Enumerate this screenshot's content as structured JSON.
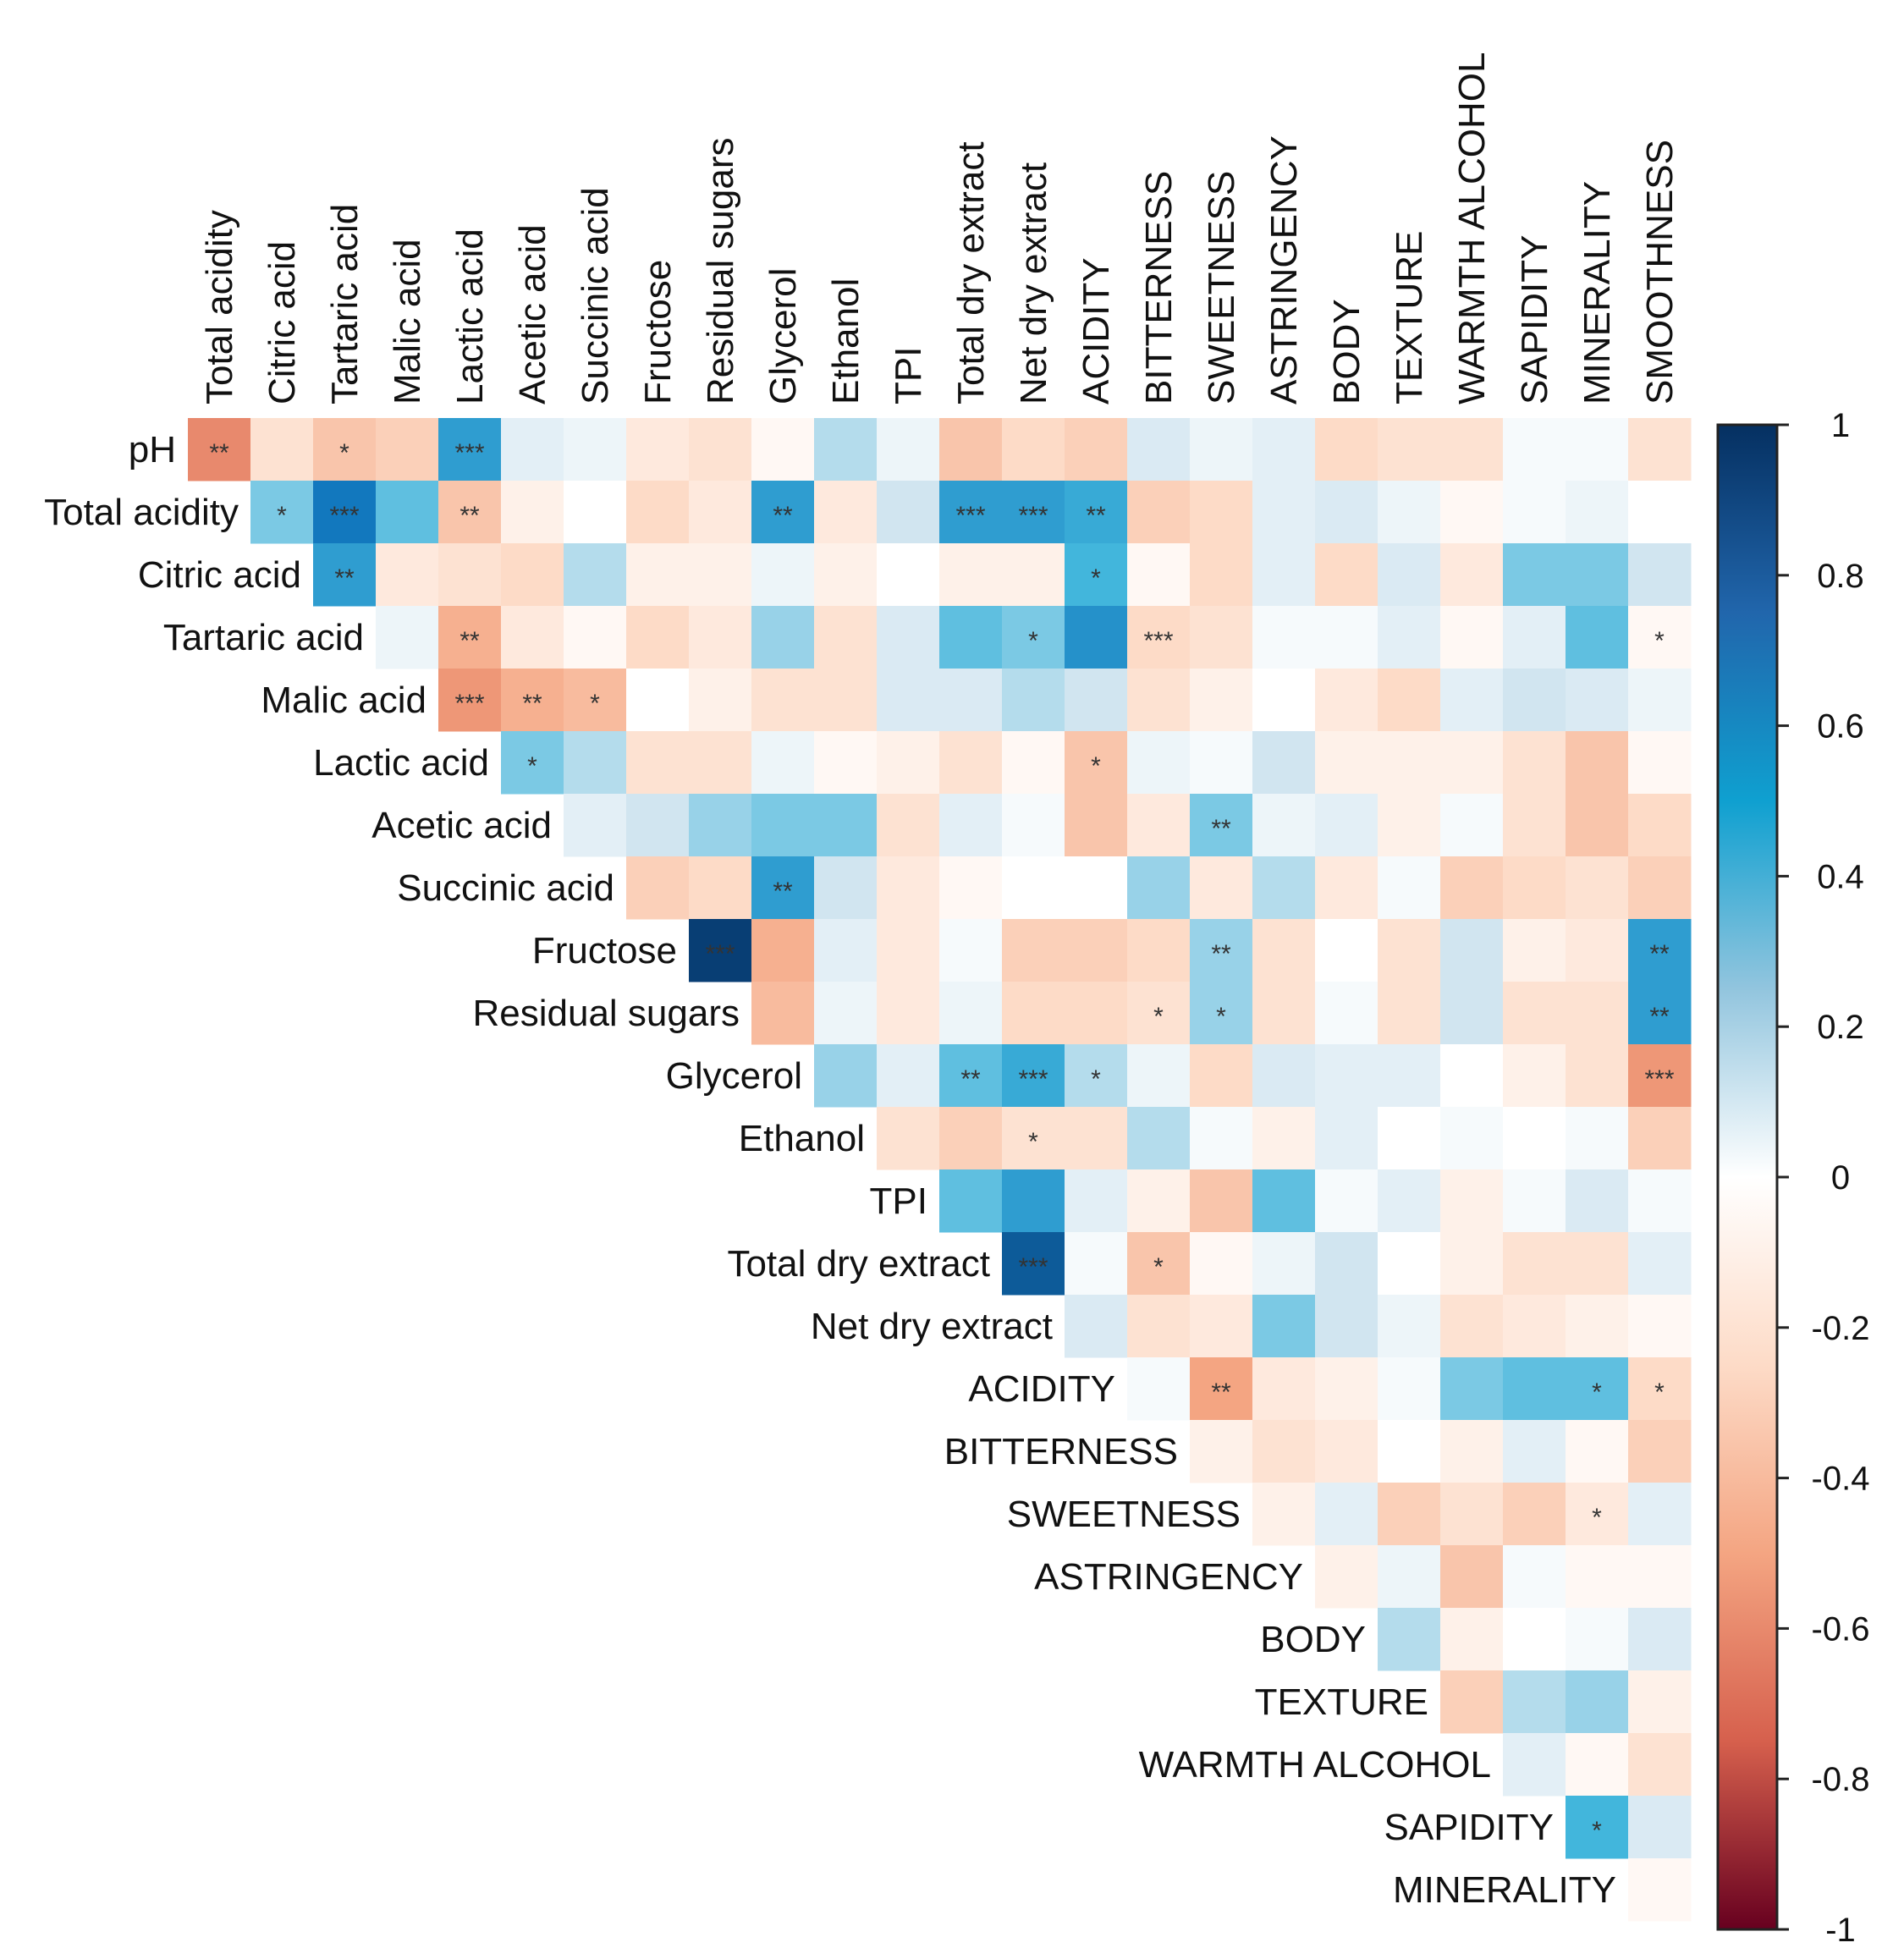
{
  "chart_data": {
    "type": "heatmap",
    "variant": "upper-triangle correlation matrix",
    "rows": [
      "pH",
      "Total acidity",
      "Citric acid",
      "Tartaric acid",
      "Malic acid",
      "Lactic acid",
      "Acetic acid",
      "Succinic acid",
      "Fructose",
      "Residual sugars",
      "Glycerol",
      "Ethanol",
      "TPI",
      "Total dry extract",
      "Net dry extract",
      "ACIDITY",
      "BITTERNESS",
      "SWEETNESS",
      "ASTRINGENCY",
      "BODY",
      "TEXTURE",
      "WARMTH ALCOHOL",
      "SAPIDITY",
      "MINERALITY"
    ],
    "columns": [
      "Total acidity",
      "Citric acid",
      "Tartaric acid",
      "Malic acid",
      "Lactic acid",
      "Acetic acid",
      "Succinic acid",
      "Fructose",
      "Residual sugars",
      "Glycerol",
      "Ethanol",
      "TPI",
      "Total dry extract",
      "Net dry extract",
      "ACIDITY",
      "BITTERNESS",
      "SWEETNESS",
      "ASTRINGENCY",
      "BODY",
      "TEXTURE",
      "WARMTH ALCOHOL",
      "SAPIDITY",
      "MINERALITY",
      "SMOOTHNESS"
    ],
    "values": [
      [
        -0.6,
        -0.2,
        -0.35,
        -0.3,
        0.6,
        0.15,
        0.1,
        -0.15,
        -0.2,
        -0.05,
        0.3,
        0.1,
        -0.35,
        -0.25,
        -0.3,
        0.2,
        0.1,
        0.15,
        -0.25,
        -0.2,
        -0.2,
        0.05,
        0.05,
        -0.2
      ],
      [
        0.4,
        0.75,
        0.45,
        -0.35,
        -0.1,
        0.0,
        -0.25,
        -0.15,
        0.6,
        -0.15,
        0.25,
        0.6,
        0.6,
        0.55,
        -0.3,
        -0.25,
        0.15,
        0.2,
        0.1,
        -0.05,
        0.05,
        0.1,
        0.0
      ],
      [
        0.6,
        -0.15,
        -0.2,
        -0.25,
        0.3,
        -0.1,
        -0.1,
        0.1,
        -0.1,
        0.0,
        -0.1,
        -0.1,
        0.5,
        -0.05,
        -0.25,
        0.15,
        -0.25,
        0.2,
        -0.15,
        0.4,
        0.4,
        0.25
      ],
      [
        0.1,
        -0.45,
        -0.15,
        -0.05,
        -0.25,
        -0.15,
        0.35,
        -0.2,
        0.2,
        0.45,
        0.4,
        0.65,
        -0.25,
        -0.2,
        0.05,
        0.05,
        0.15,
        -0.05,
        0.15,
        0.45,
        -0.05
      ],
      [
        -0.55,
        -0.45,
        -0.4,
        0.0,
        -0.1,
        -0.2,
        -0.2,
        0.2,
        0.2,
        0.3,
        0.25,
        -0.2,
        -0.1,
        0.0,
        -0.15,
        -0.25,
        0.15,
        0.25,
        0.2,
        0.1
      ],
      [
        0.4,
        0.3,
        -0.2,
        -0.2,
        0.1,
        -0.05,
        -0.1,
        -0.2,
        -0.05,
        -0.35,
        0.1,
        0.05,
        0.25,
        -0.1,
        -0.1,
        -0.1,
        -0.2,
        -0.35,
        -0.05
      ],
      [
        0.15,
        0.25,
        0.35,
        0.4,
        0.4,
        -0.2,
        0.15,
        0.05,
        -0.35,
        -0.15,
        0.4,
        0.1,
        0.15,
        -0.1,
        0.05,
        -0.2,
        -0.35,
        -0.25
      ],
      [
        -0.3,
        -0.25,
        0.6,
        0.25,
        -0.15,
        -0.05,
        0.0,
        0.0,
        0.35,
        -0.15,
        0.3,
        -0.15,
        0.05,
        -0.3,
        -0.25,
        -0.2,
        -0.3
      ],
      [
        0.95,
        -0.45,
        0.15,
        -0.15,
        0.05,
        -0.3,
        -0.3,
        -0.25,
        0.35,
        -0.2,
        0.0,
        -0.2,
        0.25,
        -0.1,
        -0.15,
        0.6
      ],
      [
        -0.4,
        0.1,
        -0.15,
        0.1,
        -0.25,
        -0.25,
        -0.2,
        0.35,
        -0.2,
        0.05,
        -0.2,
        0.25,
        -0.2,
        -0.2,
        0.6
      ],
      [
        0.35,
        0.15,
        0.45,
        0.55,
        0.3,
        0.1,
        -0.25,
        0.2,
        0.15,
        0.15,
        0.0,
        -0.1,
        -0.2,
        -0.55
      ],
      [
        -0.2,
        -0.3,
        -0.2,
        -0.2,
        0.3,
        0.05,
        -0.1,
        0.15,
        0.0,
        0.05,
        0.0,
        0.05,
        -0.3
      ],
      [
        0.45,
        0.6,
        0.15,
        -0.1,
        -0.35,
        0.45,
        0.05,
        0.15,
        -0.1,
        0.05,
        0.2,
        0.05
      ],
      [
        0.85,
        0.05,
        -0.35,
        -0.05,
        0.1,
        0.25,
        0.0,
        -0.1,
        -0.2,
        -0.2,
        0.15
      ],
      [
        0.2,
        -0.2,
        -0.15,
        0.4,
        0.25,
        0.1,
        -0.2,
        -0.15,
        -0.1,
        -0.05
      ],
      [
        0.05,
        -0.5,
        -0.15,
        -0.1,
        0.05,
        0.4,
        0.45,
        0.45,
        -0.25
      ],
      [
        -0.1,
        -0.2,
        -0.15,
        0.0,
        -0.1,
        0.15,
        -0.05,
        -0.3
      ],
      [
        -0.1,
        0.15,
        -0.3,
        -0.2,
        -0.3,
        -0.15,
        0.15
      ],
      [
        -0.1,
        0.1,
        -0.35,
        0.05,
        -0.05,
        -0.05
      ],
      [
        0.3,
        -0.1,
        0.0,
        0.05,
        0.2
      ],
      [
        -0.3,
        0.3,
        0.35,
        -0.1
      ],
      [
        0.15,
        -0.05,
        -0.2
      ],
      [
        0.5,
        0.2
      ],
      [
        -0.05
      ]
    ],
    "significance": [
      [
        "**",
        "",
        "*",
        "",
        "***",
        "",
        "",
        "",
        "",
        "",
        "",
        "",
        "",
        "",
        "",
        "",
        "",
        "",
        "",
        "",
        "",
        "",
        "",
        ""
      ],
      [
        "*",
        "***",
        "",
        "**",
        "",
        "",
        "",
        "",
        "**",
        "",
        "",
        "***",
        "***",
        "**",
        "",
        "",
        "",
        "",
        "",
        "",
        "",
        "",
        ""
      ],
      [
        "**",
        "",
        "",
        "",
        "",
        "",
        "",
        "",
        "",
        "",
        "",
        "",
        "*",
        "",
        "",
        "",
        "",
        "",
        "",
        "",
        "",
        ""
      ],
      [
        "",
        "**",
        "",
        "",
        "",
        "",
        "",
        "",
        "",
        "",
        "*",
        "",
        "***",
        "",
        "",
        "",
        "",
        "",
        "",
        "",
        "*",
        ""
      ],
      [
        "***",
        "**",
        "*",
        "",
        "",
        "",
        "",
        "",
        "",
        "",
        "",
        "",
        "",
        "",
        "",
        "",
        "",
        "",
        "",
        ""
      ],
      [
        "*",
        "",
        "",
        "",
        "",
        "",
        "",
        "",
        "",
        "*",
        "",
        "",
        "",
        "",
        "",
        "",
        "",
        "",
        ""
      ],
      [
        "",
        "",
        "",
        "",
        "",
        "",
        "",
        "",
        "",
        "",
        "**",
        "",
        "",
        "",
        "",
        "",
        "",
        ""
      ],
      [
        "",
        "",
        "**",
        "",
        "",
        "",
        "",
        "",
        "",
        "",
        "",
        "",
        "",
        "",
        "",
        "",
        ""
      ],
      [
        "***",
        "",
        "",
        "",
        "",
        "",
        "",
        "",
        "**",
        "",
        "",
        "",
        "",
        "",
        "",
        "**"
      ],
      [
        "",
        "",
        "",
        "",
        "",
        "",
        "*",
        "*",
        "",
        "",
        "",
        "",
        "",
        "",
        "**"
      ],
      [
        "",
        "",
        "**",
        "***",
        "*",
        "",
        "",
        "",
        "",
        "",
        "",
        "",
        "",
        "***"
      ],
      [
        "",
        "",
        "*",
        "",
        "",
        "",
        "",
        "",
        "",
        "",
        "",
        "",
        ""
      ],
      [
        "",
        "",
        "",
        "",
        "",
        "",
        "",
        "",
        "",
        "",
        "",
        ""
      ],
      [
        "***",
        "",
        "*",
        "",
        "",
        "",
        "",
        "",
        "",
        "",
        ""
      ],
      [
        "",
        "",
        "",
        "",
        "",
        "",
        "",
        "",
        "",
        ""
      ],
      [
        "",
        "**",
        "",
        "",
        "",
        "",
        "",
        "*",
        "*",
        ""
      ],
      [
        "",
        "",
        "",
        "",
        "",
        "",
        "",
        ""
      ],
      [
        "",
        "",
        "",
        "",
        "",
        "*",
        "",
        ""
      ],
      [
        "",
        "",
        "",
        "",
        "",
        ""
      ],
      [
        "",
        "",
        "",
        "",
        ""
      ],
      [
        "",
        "",
        "",
        ""
      ],
      [
        "",
        "",
        ""
      ],
      [
        "*",
        ""
      ],
      [
        ""
      ]
    ],
    "colorbar": {
      "min": -1,
      "max": 1,
      "ticks": [
        "1",
        "0.8",
        "0.6",
        "0.4",
        "0.2",
        "0",
        "-0.2",
        "-0.4",
        "-0.6",
        "-0.8",
        "-1"
      ],
      "palette": "RdBu"
    }
  }
}
